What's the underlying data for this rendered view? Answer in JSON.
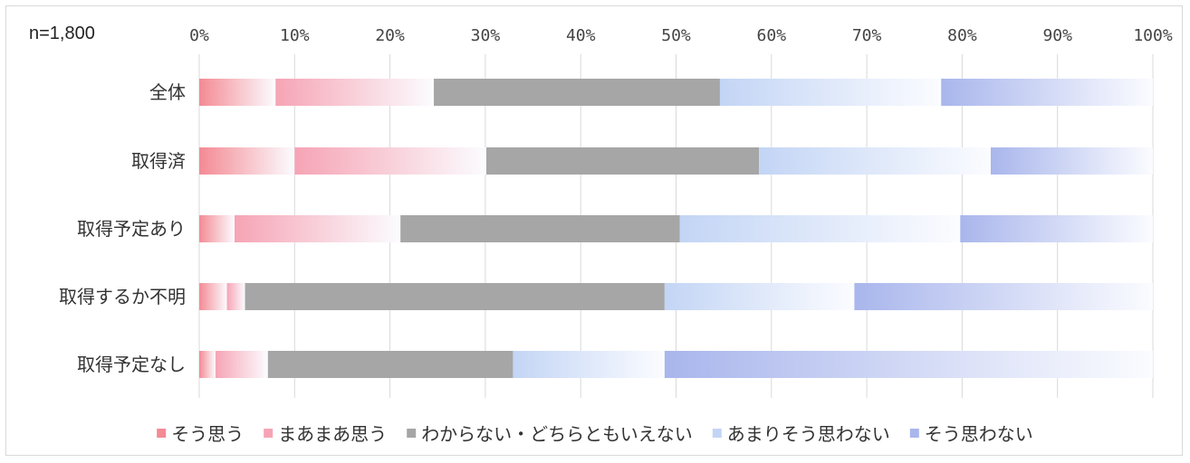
{
  "chart_data": {
    "type": "bar",
    "orientation": "horizontal",
    "stacked": true,
    "note": "n=1,800",
    "categories": [
      "全体",
      "取得済",
      "取得予定あり",
      "取得するか不明",
      "取得予定なし"
    ],
    "series": [
      {
        "name": "そう思う",
        "color": "#f48a94",
        "values": [
          8.0,
          10.0,
          3.7,
          2.9,
          1.7
        ]
      },
      {
        "name": "まあまあ思う",
        "color": "#f6a4b5",
        "values": [
          16.6,
          20.1,
          17.4,
          1.9,
          5.5
        ]
      },
      {
        "name": "わからない・どちらともいえない",
        "color": "#a6a6a6",
        "values": [
          30.0,
          28.6,
          29.3,
          44.0,
          25.7
        ]
      },
      {
        "name": "あまりそう思わない",
        "color": "#c3d5f5",
        "values": [
          23.2,
          24.3,
          29.4,
          19.9,
          15.9
        ]
      },
      {
        "name": "そう思わない",
        "color": "#a9b6ec",
        "values": [
          22.2,
          17.0,
          20.2,
          31.3,
          51.2
        ]
      }
    ],
    "x_ticks": [
      "0%",
      "10%",
      "20%",
      "30%",
      "40%",
      "50%",
      "60%",
      "70%",
      "80%",
      "90%",
      "100%"
    ],
    "xlim": [
      0,
      100
    ],
    "grid": true,
    "legend_position": "bottom"
  }
}
